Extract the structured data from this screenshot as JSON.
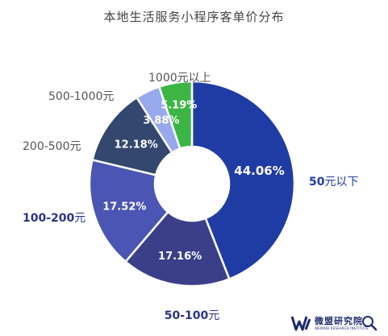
{
  "chart_data": {
    "type": "donut",
    "title": "本地生活服务小程序客单价分布",
    "slices": [
      {
        "label_prefix": "50",
        "label_suffix": "元以下",
        "value": 44.06,
        "value_label": "44.06%",
        "color": "#1f3ca5",
        "label_color": "#1f3ca5",
        "label_bold": true
      },
      {
        "label_prefix": "50-100",
        "label_suffix": "元",
        "value": 17.16,
        "value_label": "17.16%",
        "color": "#3b3f8a",
        "label_color": "#2a3585",
        "label_bold": true
      },
      {
        "label_prefix": "100-200",
        "label_suffix": "元",
        "value": 17.52,
        "value_label": "17.52%",
        "color": "#4b55b3",
        "label_color": "#2a3585",
        "label_bold": true
      },
      {
        "label_prefix": "200-500元",
        "label_suffix": "",
        "value": 12.18,
        "value_label": "12.18%",
        "color": "#34476f",
        "label_color": "#555555",
        "label_bold": false
      },
      {
        "label_prefix": "500-1000元",
        "label_suffix": "",
        "value": 3.88,
        "value_label": "3.88%",
        "color": "#98a8ec",
        "label_color": "#555555",
        "label_bold": false
      },
      {
        "label_prefix": "1000元以上",
        "label_suffix": "",
        "value": 5.19,
        "value_label": "5.19%",
        "color": "#3db545",
        "label_color": "#555555",
        "label_bold": false
      }
    ]
  },
  "logo": {
    "name": "微盟研究院",
    "subtitle": "WEIMOB RESEARCH INSTITUTE"
  }
}
